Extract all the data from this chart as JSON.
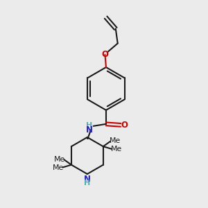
{
  "background_color": "#ebebeb",
  "bond_color": "#1a1a1a",
  "oxygen_color": "#cc0000",
  "nitrogen_color": "#2020cc",
  "nh_color": "#5aabab",
  "line_width": 1.5,
  "figsize": [
    3.0,
    3.0
  ],
  "dpi": 100,
  "xlim": [
    0,
    10
  ],
  "ylim": [
    0,
    10
  ]
}
